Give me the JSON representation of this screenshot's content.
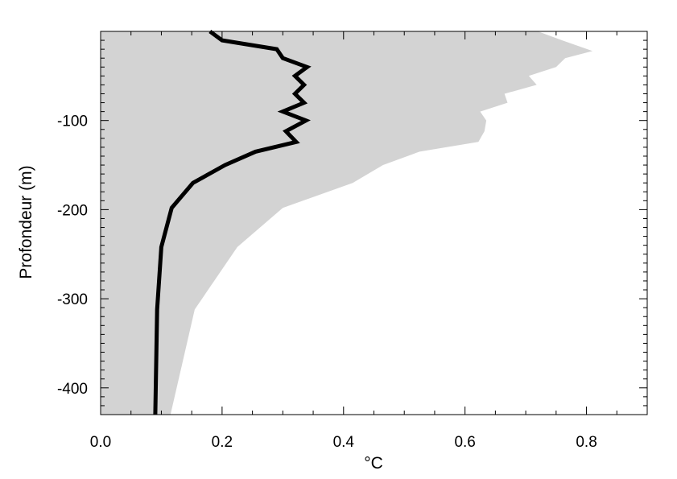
{
  "chart_data": {
    "type": "line",
    "xlabel": "°C",
    "ylabel": "Profondeur (m)",
    "xlim": [
      0.0,
      0.9
    ],
    "ylim": [
      -430,
      0
    ],
    "x_ticks": [
      "0.0",
      "0.2",
      "0.4",
      "0.6",
      "0.8"
    ],
    "y_ticks": [
      "-100",
      "-200",
      "-300",
      "-400"
    ],
    "grid": false,
    "legend": "none",
    "series": [
      {
        "style": "thick black line",
        "points": [
          {
            "x": 0.18,
            "y": 0
          },
          {
            "x": 0.2,
            "y": -10
          },
          {
            "x": 0.29,
            "y": -20
          },
          {
            "x": 0.3,
            "y": -30
          },
          {
            "x": 0.34,
            "y": -40
          },
          {
            "x": 0.32,
            "y": -50
          },
          {
            "x": 0.335,
            "y": -60
          },
          {
            "x": 0.32,
            "y": -70
          },
          {
            "x": 0.335,
            "y": -80
          },
          {
            "x": 0.3,
            "y": -90
          },
          {
            "x": 0.338,
            "y": -100
          },
          {
            "x": 0.305,
            "y": -112
          },
          {
            "x": 0.322,
            "y": -124
          },
          {
            "x": 0.255,
            "y": -135
          },
          {
            "x": 0.205,
            "y": -150
          },
          {
            "x": 0.152,
            "y": -170
          },
          {
            "x": 0.117,
            "y": -198
          },
          {
            "x": 0.1,
            "y": -242
          },
          {
            "x": 0.093,
            "y": -312
          },
          {
            "x": 0.09,
            "y": -430
          }
        ]
      }
    ],
    "band": {
      "style": "light grey shaded area from x=0 to upper envelope",
      "color": "#d3d3d3",
      "upper": [
        {
          "x": 0.72,
          "y": 0
        },
        {
          "x": 0.76,
          "y": -10
        },
        {
          "x": 0.81,
          "y": -22
        },
        {
          "x": 0.765,
          "y": -30
        },
        {
          "x": 0.75,
          "y": -40
        },
        {
          "x": 0.705,
          "y": -50
        },
        {
          "x": 0.718,
          "y": -60
        },
        {
          "x": 0.665,
          "y": -70
        },
        {
          "x": 0.67,
          "y": -80
        },
        {
          "x": 0.625,
          "y": -90
        },
        {
          "x": 0.635,
          "y": -100
        },
        {
          "x": 0.632,
          "y": -112
        },
        {
          "x": 0.622,
          "y": -124
        },
        {
          "x": 0.525,
          "y": -135
        },
        {
          "x": 0.465,
          "y": -150
        },
        {
          "x": 0.415,
          "y": -170
        },
        {
          "x": 0.3,
          "y": -198
        },
        {
          "x": 0.225,
          "y": -242
        },
        {
          "x": 0.155,
          "y": -312
        },
        {
          "x": 0.115,
          "y": -430
        }
      ]
    },
    "colors": {
      "line": "#000000",
      "band": "#d3d3d3",
      "axis": "#000000"
    }
  }
}
